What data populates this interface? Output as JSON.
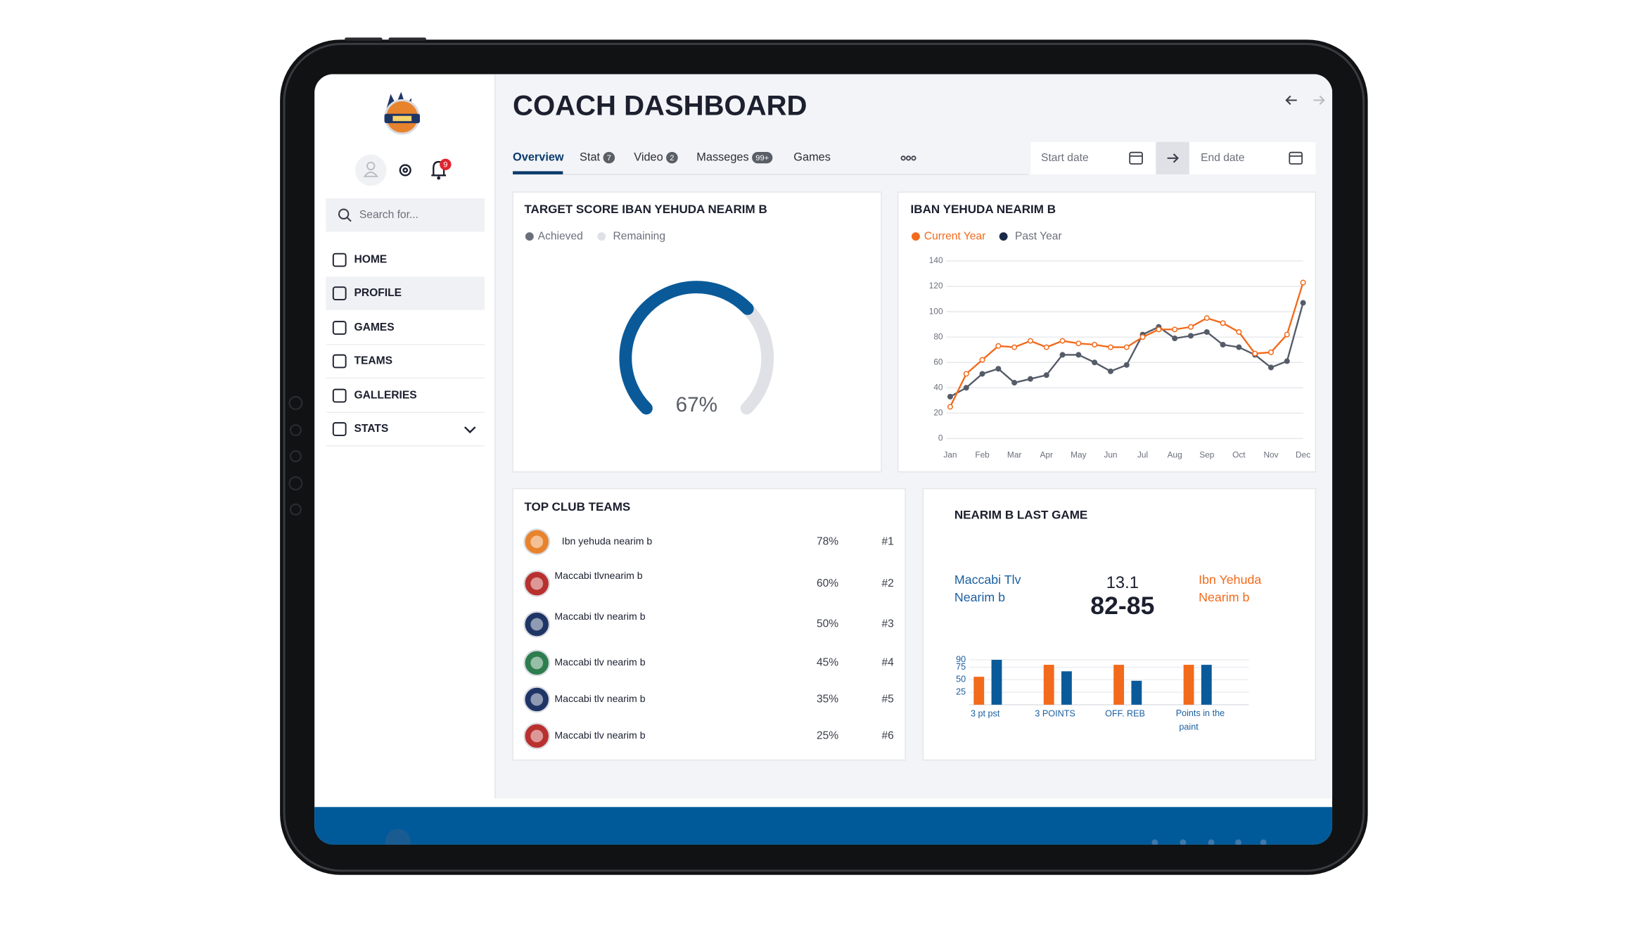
{
  "header": {
    "title": "COACH DASHBOARD"
  },
  "sidebar": {
    "search_placeholder": "Search for...",
    "notification_count": "9",
    "nav": [
      "HOME",
      "PROFILE",
      "GAMES",
      "TEAMS",
      "GALLERIES",
      "STATS"
    ]
  },
  "tabs": [
    {
      "label": "Overview"
    },
    {
      "label": "Stat",
      "badge": "7"
    },
    {
      "label": "Video",
      "badge": "2"
    },
    {
      "label": "Masseges",
      "badge": "99+"
    },
    {
      "label": "Games"
    }
  ],
  "date_range": {
    "start": "Start date",
    "end": "End date"
  },
  "top_teams": {
    "title": "TOP CLUB TEAMS",
    "rows": [
      {
        "name": "Ibn yehuda nearim b",
        "share": "78%",
        "rank": "#1"
      },
      {
        "name": "Maccabi tlvnearim b",
        "share": "60%",
        "rank": "#2"
      },
      {
        "name": "Maccabi tlv nearim b",
        "share": "50%",
        "rank": "#3"
      },
      {
        "name": "Maccabi tlv nearim b",
        "share": "45%",
        "rank": "#4"
      },
      {
        "name": "Maccabi tlv nearim b",
        "share": "35%",
        "rank": "#5"
      },
      {
        "name": "Maccabi tlv nearim b",
        "share": "25%",
        "rank": "#6"
      }
    ]
  },
  "last_game": {
    "title": "NEARIM B LAST GAME",
    "home": [
      "Maccabi Tlv",
      "Nearim b"
    ],
    "away": [
      "Ibn Yehuda",
      "Nearim b"
    ],
    "average": "13.1",
    "score": "82-85"
  },
  "chart_data": [
    {
      "type": "gauge",
      "title": "TARGET SCORE IBAN YEHUDA NEARIM B",
      "legend": [
        "Achieved",
        "Remaining"
      ],
      "colors": [
        "#0a5a99",
        "#dfe1e6"
      ],
      "values": [
        67
      ],
      "value_labels": [
        "67%"
      ],
      "ylim": [
        0,
        100
      ]
    },
    {
      "type": "line",
      "title": "IBAN YEHUDA NEARIM B",
      "categories": [
        "Jan",
        null,
        "Feb",
        null,
        "Mar",
        null,
        "Apr",
        null,
        "May",
        null,
        "Jun",
        null,
        "Jul",
        null,
        "Aug",
        null,
        "Sep",
        null,
        "Oct",
        null,
        "Nov",
        null,
        "Dec"
      ],
      "series": [
        {
          "name": "Current Year",
          "color": "#f26a1b",
          "values": [
            25,
            51,
            62,
            73,
            72,
            77,
            72,
            77,
            75,
            74,
            72,
            72,
            80,
            86,
            86,
            88,
            95,
            91,
            84,
            67,
            68,
            82,
            123
          ]
        },
        {
          "name": "Past Year",
          "color": "#555b68",
          "values": [
            33,
            40,
            51,
            55,
            44,
            47,
            50,
            66,
            66,
            60,
            53,
            58,
            82,
            88,
            79,
            81,
            84,
            74,
            72,
            66,
            56,
            61,
            107
          ]
        }
      ],
      "ylim": [
        0,
        140
      ],
      "yticks": [
        0,
        20,
        40,
        60,
        80,
        100,
        120,
        140
      ],
      "grid": true
    },
    {
      "type": "bar",
      "categories": [
        "3 pt pst",
        "3 POINTS",
        "OFF. REB",
        "Points in the paint"
      ],
      "series": [
        {
          "color": "#f26a1b",
          "values": [
            56,
            80,
            80,
            80
          ]
        },
        {
          "color": "#0a5a99",
          "values": [
            90,
            67,
            48,
            80
          ]
        }
      ],
      "ylim": [
        0,
        90
      ],
      "yticks": [
        25,
        50,
        75,
        90
      ],
      "grid": true
    }
  ]
}
